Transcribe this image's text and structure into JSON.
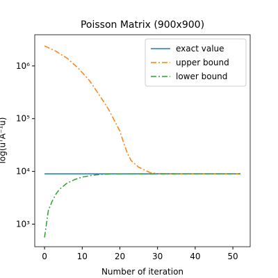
{
  "chart_data": {
    "type": "line",
    "title": "Poisson Matrix (900x900)",
    "xlabel": "Number of iteration",
    "ylabel": "log(uᵀA⁻¹u)",
    "xlim": [
      -2.6,
      54.6
    ],
    "xticks": [
      0,
      10,
      20,
      30,
      40,
      50
    ],
    "ylim": [
      373,
      3900000
    ],
    "log_y": true,
    "yticks": [
      {
        "value": 1000,
        "label": "10³"
      },
      {
        "value": 10000,
        "label": "10⁴"
      },
      {
        "value": 100000,
        "label": "10⁵"
      },
      {
        "value": 1000000,
        "label": "10⁶"
      }
    ],
    "legend": "upper right",
    "series": [
      {
        "name": "exact value",
        "color": "#1f77b4",
        "dash": "solid",
        "x": [
          0,
          52
        ],
        "values": [
          9000,
          9000
        ]
      },
      {
        "name": "upper bound",
        "color": "#ff7f0e",
        "dash": "dashdot",
        "x": [
          0,
          3,
          6,
          9,
          12,
          15,
          17,
          19,
          20,
          21,
          22,
          23,
          25,
          28,
          30,
          35,
          52
        ],
        "values": [
          2400000,
          1900000,
          1400000,
          900000,
          520000,
          250000,
          150000,
          80000,
          58000,
          35000,
          22000,
          16000,
          12000,
          9500,
          9100,
          9000,
          9000
        ]
      },
      {
        "name": "lower bound",
        "color": "#2ca02c",
        "dash": "dashdot",
        "x": [
          0,
          1,
          2,
          3,
          4,
          6,
          8,
          10,
          13,
          16,
          20,
          25,
          52
        ],
        "values": [
          560,
          1800,
          2700,
          3700,
          4600,
          6000,
          7000,
          7800,
          8500,
          8850,
          8950,
          9000,
          9000
        ]
      }
    ]
  }
}
